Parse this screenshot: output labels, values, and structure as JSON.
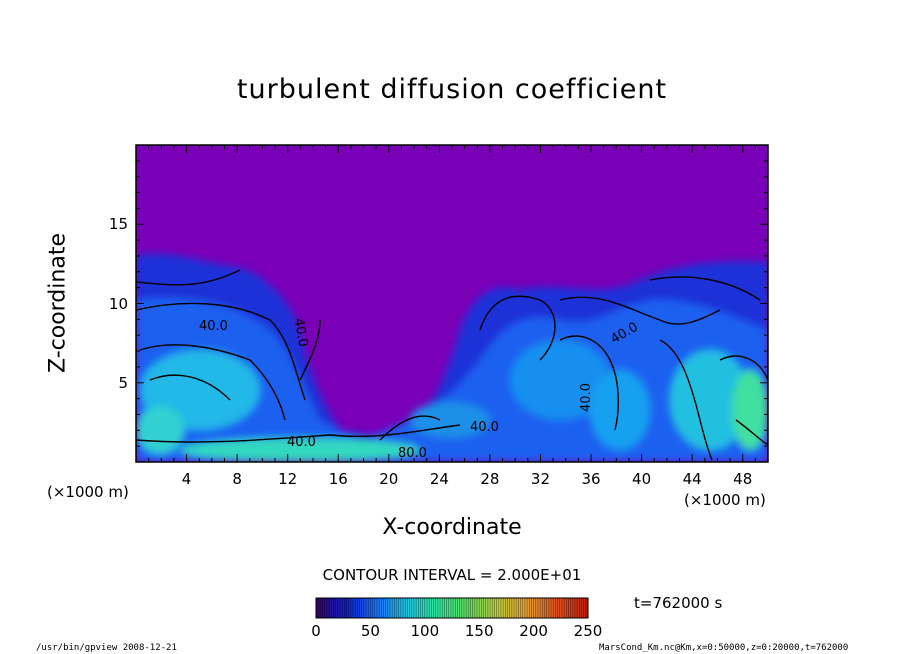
{
  "chart_data": {
    "type": "heatmap",
    "title": "turbulent diffusion coefficient",
    "xlabel": "X-coordinate",
    "ylabel": "Z-coordinate",
    "x_unit": "(×1000 m)",
    "y_unit": "(×1000 m)",
    "xlim": [
      0,
      50
    ],
    "ylim": [
      0,
      20
    ],
    "x_ticks": [
      "4",
      "8",
      "12",
      "16",
      "20",
      "24",
      "28",
      "32",
      "36",
      "40",
      "44",
      "48"
    ],
    "y_ticks": [
      "5",
      "10",
      "15"
    ],
    "contour_labels": [
      "40.0",
      "40.0",
      "40.0",
      "40.0",
      "40.0",
      "40.0",
      "80.0"
    ],
    "contour_interval_text": "CONTOUR INTERVAL = 2.000E+01",
    "colorbar": {
      "min": 0,
      "max": 250,
      "ticks": [
        "0",
        "50",
        "100",
        "150",
        "200",
        "250"
      ],
      "colors": [
        "#3a0070",
        "#1020c8",
        "#1a70ff",
        "#20c8e8",
        "#30e8a0",
        "#60e060",
        "#c0d040",
        "#e8a030",
        "#e05020",
        "#c02010"
      ]
    },
    "time_text": "t=762000 s"
  },
  "footer": {
    "left": "/usr/bin/gpview   2008-12-21",
    "right": "MarsCond_Km.nc@Km,x=0:50000,z=0:20000,t=762000"
  },
  "colors": {
    "background_field": "#7a00b8",
    "frame": "#000000"
  }
}
